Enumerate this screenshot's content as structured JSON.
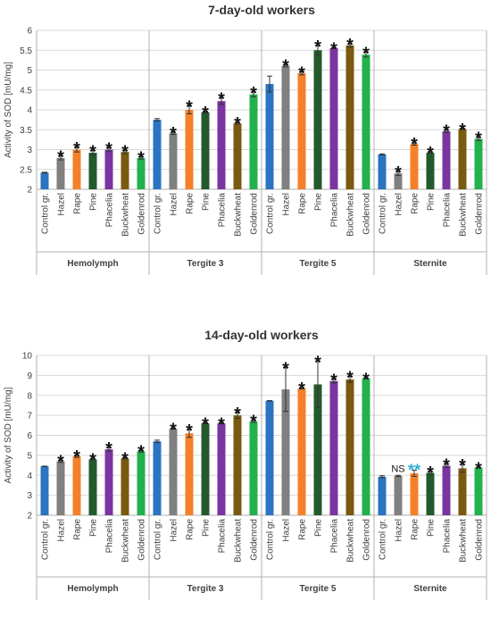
{
  "chart_data": [
    {
      "type": "bar",
      "title": "7-day-old workers",
      "ylabel": "Activity of SOD [mU/mg]",
      "xlabel": "",
      "ylim": [
        2,
        6
      ],
      "yticks": [
        "2",
        "2.5",
        "3",
        "3.5",
        "4",
        "4.5",
        "5",
        "5.5",
        "6"
      ],
      "grid": true,
      "legend": "none",
      "category_labels": [
        "Control gr.",
        "Hazel",
        "Rape",
        "Pine",
        "Phacelia",
        "Buckwheat",
        "Goldenrod"
      ],
      "groups": [
        {
          "name": "Hemolymph",
          "values": [
            2.42,
            2.79,
            3.0,
            2.92,
            3.0,
            2.94,
            2.79
          ],
          "errors": [
            0.01,
            0.05,
            0.06,
            0.06,
            0.05,
            0.04,
            0.03
          ],
          "markers": [
            "",
            "*",
            "*",
            "*",
            "*",
            "*",
            "*"
          ]
        },
        {
          "name": "Tergite 3",
          "values": [
            3.75,
            3.41,
            4.0,
            3.94,
            4.22,
            3.66,
            4.39
          ],
          "errors": [
            0.03,
            0.03,
            0.1,
            0.02,
            0.08,
            0.02,
            0.06
          ],
          "markers": [
            "",
            "*",
            "*",
            "*",
            "*",
            "*",
            "*"
          ]
        },
        {
          "name": "Tergite 5",
          "values": [
            4.65,
            5.11,
            4.92,
            5.5,
            5.55,
            5.62,
            5.39
          ],
          "errors": [
            0.2,
            0.03,
            0.04,
            0.12,
            0.01,
            0.04,
            0.06
          ],
          "markers": [
            "",
            "*",
            "*",
            "*",
            "*",
            "*",
            "*"
          ]
        },
        {
          "name": "Sternite",
          "values": [
            2.88,
            2.4,
            3.14,
            2.92,
            3.46,
            3.52,
            3.27
          ],
          "errors": [
            0.01,
            0.05,
            0.03,
            0.02,
            0.03,
            0.01,
            0.04
          ],
          "markers": [
            "",
            "*",
            "*",
            "*",
            "*",
            "*",
            "*"
          ]
        }
      ]
    },
    {
      "type": "bar",
      "title": "14-day-old workers",
      "ylabel": "Activity of SOD [mU/mg]",
      "xlabel": "",
      "ylim": [
        2,
        10
      ],
      "yticks": [
        "2",
        "3",
        "4",
        "5",
        "6",
        "7",
        "8",
        "9",
        "10"
      ],
      "grid": true,
      "legend": "none",
      "category_labels": [
        "Control gr.",
        "Hazel",
        "Rape",
        "Pine",
        "Phacelia",
        "Buckwheat",
        "Goldenrod"
      ],
      "groups": [
        {
          "name": "Hemolymph",
          "values": [
            4.45,
            4.7,
            4.95,
            4.8,
            5.3,
            4.85,
            5.2
          ],
          "errors": [
            0.01,
            0.05,
            0.05,
            0.03,
            0.1,
            0.03,
            0.04
          ],
          "markers": [
            "",
            "*",
            "*",
            "*",
            "*",
            "*",
            "*"
          ]
        },
        {
          "name": "Tergite 3",
          "values": [
            5.7,
            6.33,
            6.1,
            6.6,
            6.6,
            7.0,
            6.7
          ],
          "errors": [
            0.06,
            0.02,
            0.2,
            0.02,
            0.03,
            0.15,
            0.05
          ],
          "markers": [
            "",
            "*",
            "*",
            "*",
            "*",
            "*",
            "*"
          ]
        },
        {
          "name": "Tergite 5",
          "values": [
            7.73,
            8.3,
            8.35,
            8.55,
            8.72,
            8.8,
            8.85
          ],
          "errors": [
            0.01,
            1.1,
            0.03,
            1.15,
            0.1,
            0.15,
            0.01
          ],
          "markers": [
            "",
            "*",
            "*",
            "*",
            "*",
            "*",
            "*"
          ]
        },
        {
          "name": "Sternite",
          "values": [
            3.93,
            3.97,
            4.1,
            4.12,
            4.48,
            4.35,
            4.38
          ],
          "errors": [
            0.05,
            0.03,
            0.15,
            0.07,
            0.08,
            0.2,
            0.01
          ],
          "markers": [
            "",
            "NS",
            "**",
            "*",
            "*",
            "*",
            "*"
          ]
        }
      ]
    }
  ],
  "colors": {
    "bars": [
      "#2a74c1",
      "#808080",
      "#f4812a",
      "#235a2d",
      "#7a35a0",
      "#7a5a10",
      "#22b14c"
    ],
    "double_star": "#2eaed6",
    "grid": "#d9d9d9",
    "axis": "#b0b0b0",
    "text": "#404040",
    "title": "#333333"
  }
}
